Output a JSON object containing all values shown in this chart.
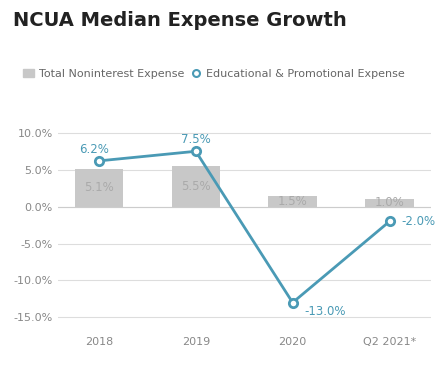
{
  "categories": [
    "2018",
    "2019",
    "2020",
    "Q2 2021*"
  ],
  "bar_values": [
    5.1,
    5.5,
    1.5,
    1.0
  ],
  "line_values": [
    6.2,
    7.5,
    -13.0,
    -2.0
  ],
  "bar_labels": [
    "5.1%",
    "5.5%",
    "1.5%",
    "1.0%"
  ],
  "line_labels": [
    "6.2%",
    "7.5%",
    "-13.0%",
    "-2.0%"
  ],
  "bar_color": "#c8c8c8",
  "line_color": "#4a9ab5",
  "title": "NCUA Median Expense Growth",
  "legend_bar": "Total Noninterest Expense",
  "legend_line": "Educational & Promotional Expense",
  "ylim": [
    -17,
    12
  ],
  "yticks": [
    -15.0,
    -10.0,
    -5.0,
    0.0,
    5.0,
    10.0
  ],
  "bar_label_color": "#aaaaaa",
  "line_label_color": "#4a9ab5",
  "background_color": "#ffffff",
  "grid_color": "#dddddd",
  "title_fontsize": 14,
  "label_fontsize": 8.5,
  "tick_fontsize": 8,
  "legend_fontsize": 8
}
